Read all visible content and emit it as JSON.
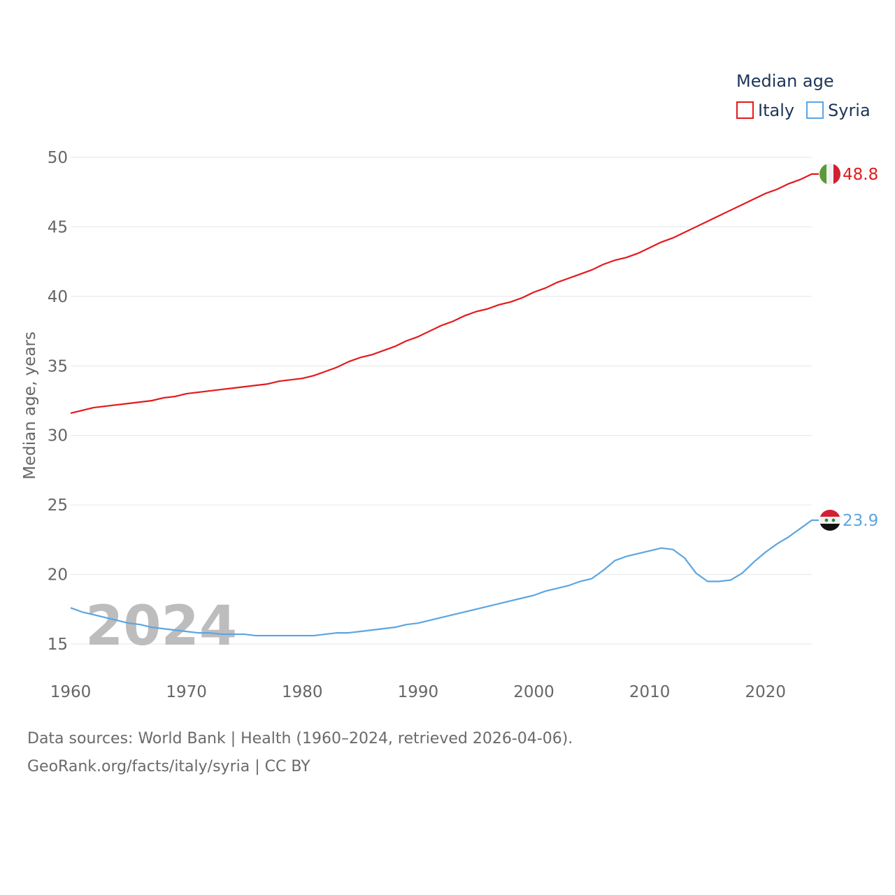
{
  "chart_data": {
    "type": "line",
    "legend_title": "Median age",
    "ylabel": "Median age, years",
    "xlabel": "",
    "ylim": [
      13,
      51
    ],
    "xlim": [
      1960,
      2024
    ],
    "y_ticks": [
      "15",
      "20",
      "25",
      "30",
      "35",
      "40",
      "45",
      "50"
    ],
    "x_ticks": [
      "1960",
      "1970",
      "1980",
      "1990",
      "2000",
      "2010",
      "2020"
    ],
    "year_stamp": "2024",
    "x": [
      1960,
      1961,
      1962,
      1963,
      1964,
      1965,
      1966,
      1967,
      1968,
      1969,
      1970,
      1971,
      1972,
      1973,
      1974,
      1975,
      1976,
      1977,
      1978,
      1979,
      1980,
      1981,
      1982,
      1983,
      1984,
      1985,
      1986,
      1987,
      1988,
      1989,
      1990,
      1991,
      1992,
      1993,
      1994,
      1995,
      1996,
      1997,
      1998,
      1999,
      2000,
      2001,
      2002,
      2003,
      2004,
      2005,
      2006,
      2007,
      2008,
      2009,
      2010,
      2011,
      2012,
      2013,
      2014,
      2015,
      2016,
      2017,
      2018,
      2019,
      2020,
      2021,
      2022,
      2023,
      2024
    ],
    "series": [
      {
        "name": "Italy",
        "color": "#e31a1c",
        "end_label": "48.8",
        "flag": "italy-flag",
        "values": [
          31.6,
          31.8,
          32.0,
          32.1,
          32.2,
          32.3,
          32.4,
          32.5,
          32.7,
          32.8,
          33.0,
          33.1,
          33.2,
          33.3,
          33.4,
          33.5,
          33.6,
          33.7,
          33.9,
          34.0,
          34.1,
          34.3,
          34.6,
          34.9,
          35.3,
          35.6,
          35.8,
          36.1,
          36.4,
          36.8,
          37.1,
          37.5,
          37.9,
          38.2,
          38.6,
          38.9,
          39.1,
          39.4,
          39.6,
          39.9,
          40.3,
          40.6,
          41.0,
          41.3,
          41.6,
          41.9,
          42.3,
          42.6,
          42.8,
          43.1,
          43.5,
          43.9,
          44.2,
          44.6,
          45.0,
          45.4,
          45.8,
          46.2,
          46.6,
          47.0,
          47.4,
          47.7,
          48.1,
          48.4,
          48.8
        ]
      },
      {
        "name": "Syria",
        "color": "#5da5e0",
        "end_label": "23.9",
        "flag": "syria-flag",
        "values": [
          17.6,
          17.3,
          17.1,
          16.9,
          16.7,
          16.5,
          16.4,
          16.2,
          16.1,
          16.0,
          15.9,
          15.8,
          15.8,
          15.7,
          15.7,
          15.7,
          15.6,
          15.6,
          15.6,
          15.6,
          15.6,
          15.6,
          15.7,
          15.8,
          15.8,
          15.9,
          16.0,
          16.1,
          16.2,
          16.4,
          16.5,
          16.7,
          16.9,
          17.1,
          17.3,
          17.5,
          17.7,
          17.9,
          18.1,
          18.3,
          18.5,
          18.8,
          19.0,
          19.2,
          19.5,
          19.7,
          20.3,
          21.0,
          21.3,
          21.5,
          21.7,
          21.9,
          21.8,
          21.2,
          20.1,
          19.5,
          19.5,
          19.6,
          20.1,
          20.9,
          21.6,
          22.2,
          22.7,
          23.3,
          23.9
        ]
      }
    ]
  },
  "footer": {
    "line1": "Data sources: World Bank | Health (1960–2024, retrieved 2026-04-06).",
    "line2": "GeoRank.org/facts/italy/syria | CC BY"
  }
}
